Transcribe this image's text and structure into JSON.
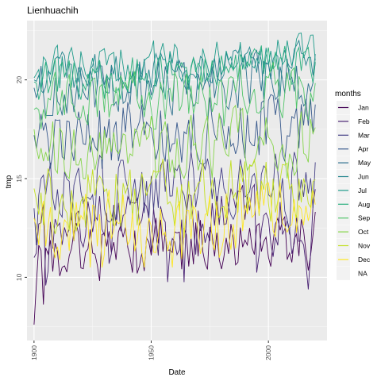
{
  "chart_data": {
    "type": "line",
    "title": "Lienhuachih",
    "xlabel": "Date",
    "ylabel": "tmp",
    "xlim": [
      1897,
      2025
    ],
    "ylim": [
      6.8,
      23.0
    ],
    "x_ticks": [
      1900,
      1950,
      2000
    ],
    "y_ticks": [
      10,
      15,
      20
    ],
    "grid": true,
    "legend": {
      "title": "months",
      "position": "right"
    },
    "x_start": 1900,
    "x_end": 2020,
    "series": [
      {
        "name": "Jan",
        "color": "#440154",
        "start": 7.6,
        "mean": 11.6,
        "amp": 0.9,
        "seed": 1,
        "min": 7.3,
        "max": 13.5
      },
      {
        "name": "Feb",
        "color": "#482173",
        "start": 11.0,
        "mean": 12.6,
        "amp": 1.0,
        "seed": 2,
        "min": 9.0,
        "max": 15.0
      },
      {
        "name": "Mar",
        "color": "#433E85",
        "start": 13.5,
        "mean": 14.6,
        "amp": 1.0,
        "seed": 3,
        "min": 11.5,
        "max": 16.8
      },
      {
        "name": "Apr",
        "color": "#38598C",
        "start": 17.2,
        "mean": 17.4,
        "amp": 1.0,
        "seed": 4,
        "min": 15.5,
        "max": 19.5
      },
      {
        "name": "May",
        "color": "#2D708E",
        "start": 19.6,
        "mean": 19.8,
        "amp": 0.8,
        "seed": 5,
        "min": 18.2,
        "max": 21.5
      },
      {
        "name": "Jun",
        "color": "#25858E",
        "start": 20.0,
        "mean": 20.6,
        "amp": 0.6,
        "seed": 6,
        "min": 19.0,
        "max": 22.0
      },
      {
        "name": "Jul",
        "color": "#1E9B8A",
        "start": 20.1,
        "mean": 21.0,
        "amp": 0.6,
        "seed": 7,
        "min": 19.5,
        "max": 22.5
      },
      {
        "name": "Aug",
        "color": "#2BB07F",
        "start": 19.9,
        "mean": 20.4,
        "amp": 0.6,
        "seed": 8,
        "min": 19.0,
        "max": 22.0
      },
      {
        "name": "Sep",
        "color": "#51C56A",
        "start": 18.5,
        "mean": 19.2,
        "amp": 0.8,
        "seed": 9,
        "min": 17.5,
        "max": 21.0
      },
      {
        "name": "Oct",
        "color": "#85D54A",
        "start": 17.5,
        "mean": 16.8,
        "amp": 0.9,
        "seed": 10,
        "min": 15.0,
        "max": 18.8
      },
      {
        "name": "Nov",
        "color": "#C2DF23",
        "start": 14.5,
        "mean": 14.2,
        "amp": 1.0,
        "seed": 11,
        "min": 12.0,
        "max": 16.5
      },
      {
        "name": "Dec",
        "color": "#FDE725",
        "start": 13.0,
        "mean": 12.8,
        "amp": 1.0,
        "seed": 12,
        "min": 10.5,
        "max": 15.0
      },
      {
        "name": "NA",
        "color": "#ebebeb",
        "hidden": true
      }
    ]
  }
}
